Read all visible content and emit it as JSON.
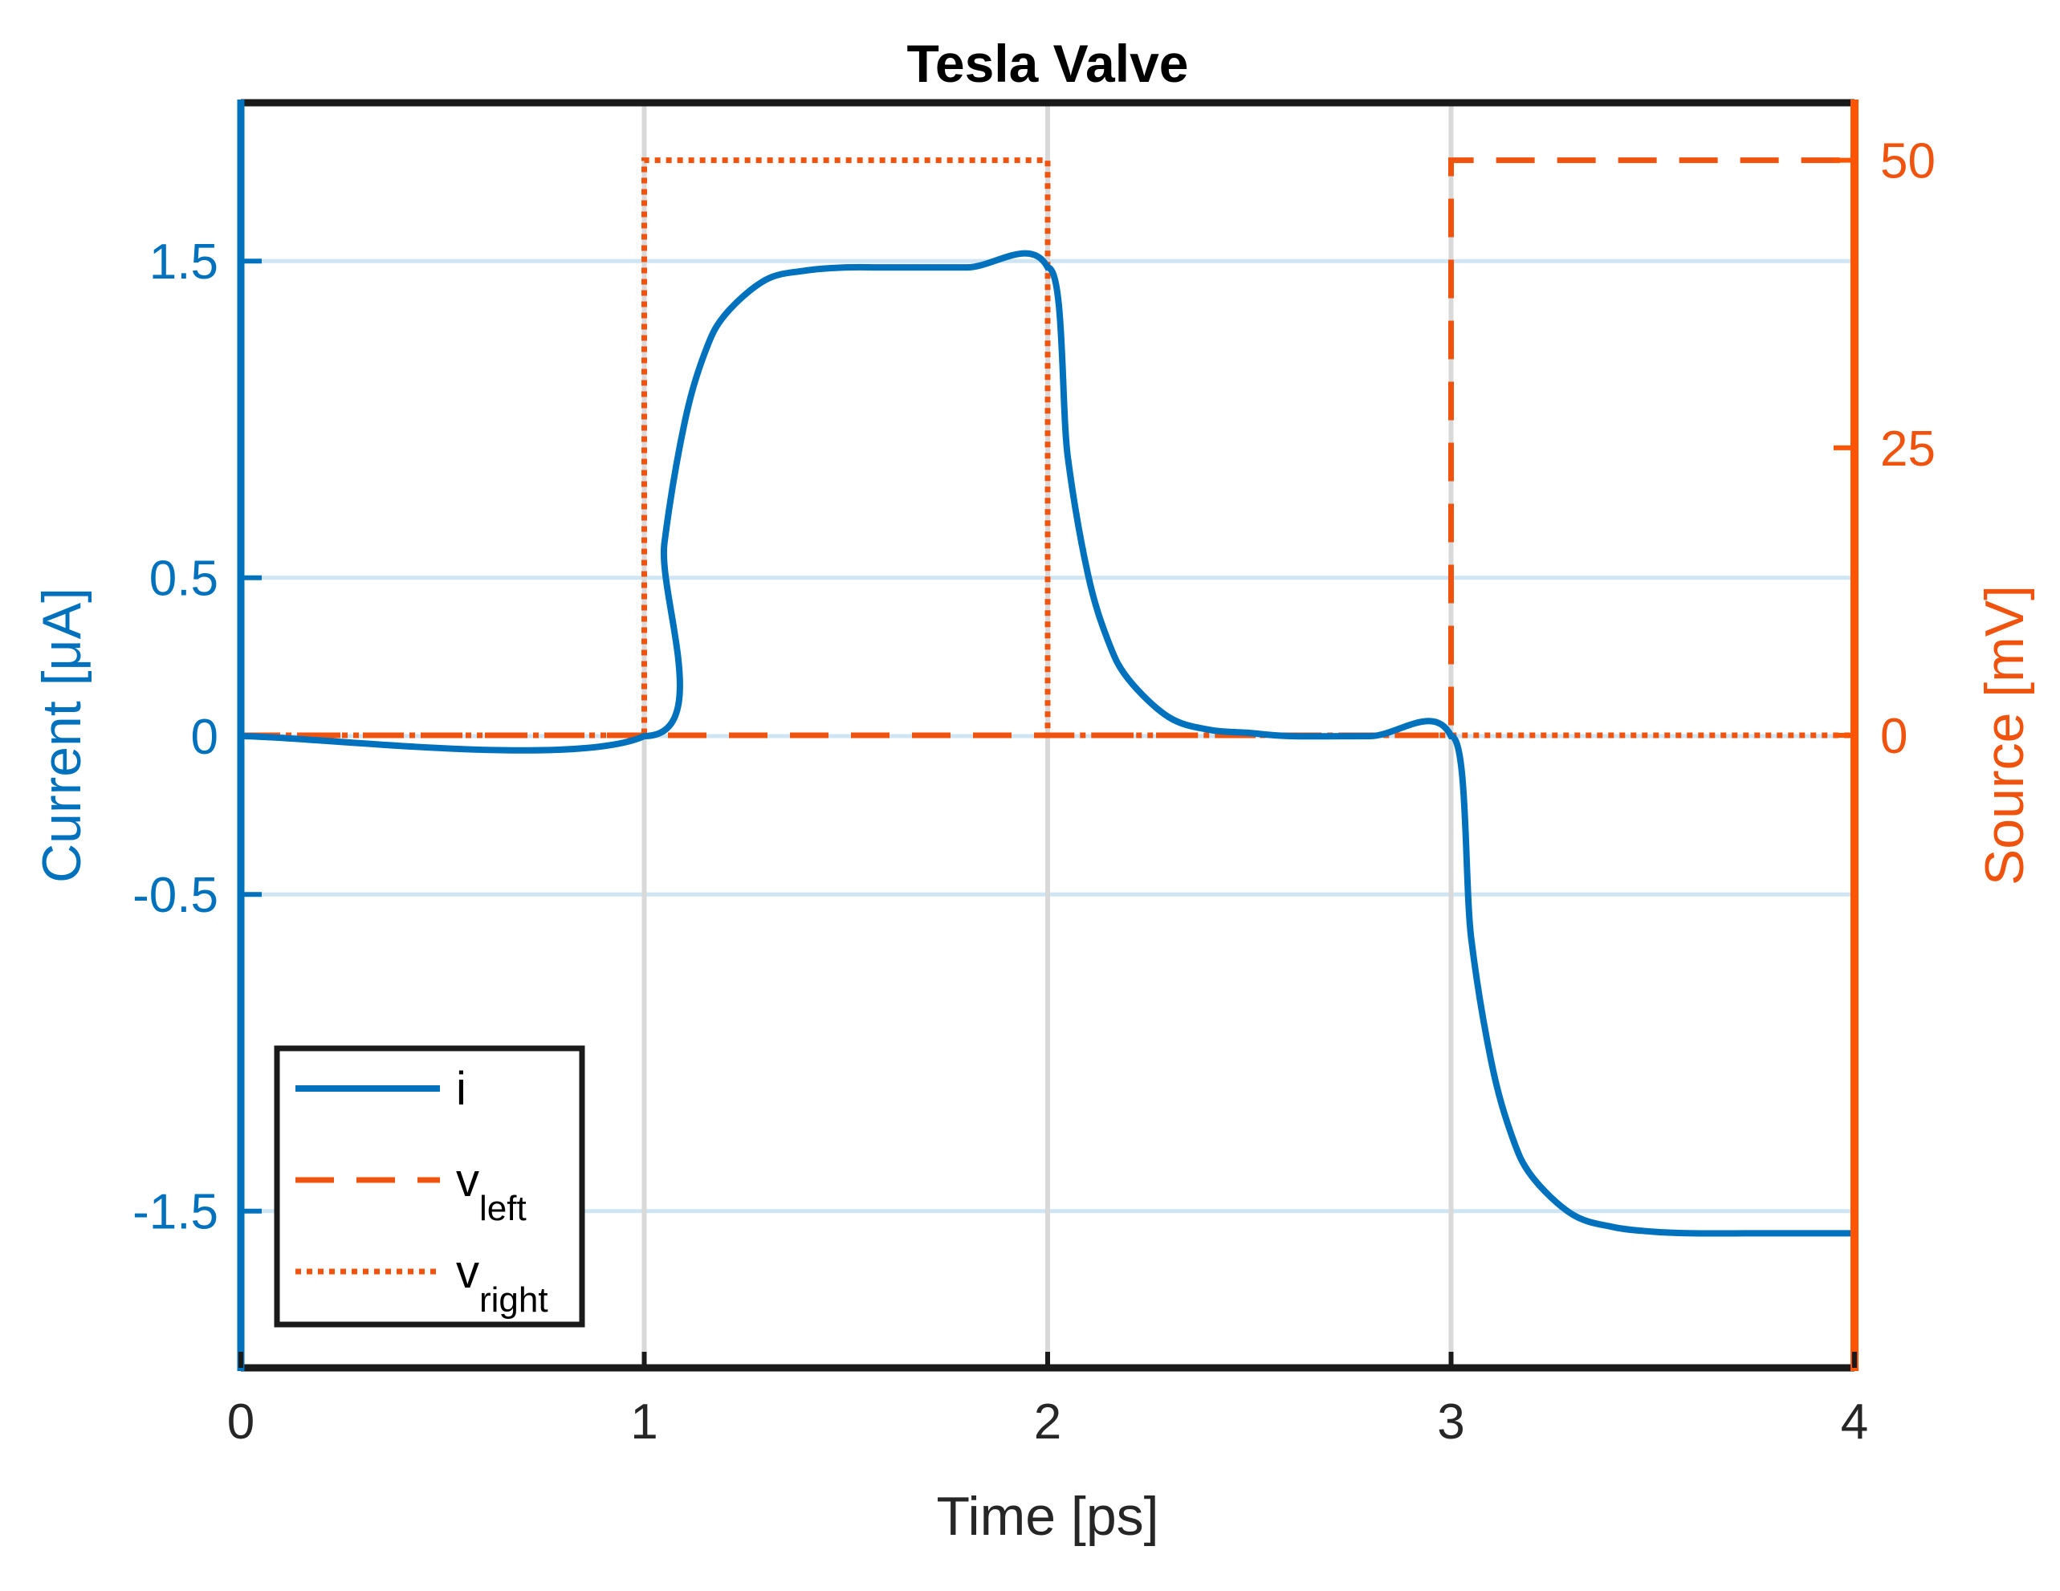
{
  "colors": {
    "current": "#0072BD",
    "source": "#F0530E",
    "source_axis": "#FF5500",
    "grid_h": "#CFE5F4",
    "grid_v": "#D9D9D9",
    "axis": "#262626",
    "box": "#1A1A1A"
  },
  "chart_data": {
    "type": "line",
    "title": "Tesla Valve",
    "xlabel": "Time [ps]",
    "ylabel_left": "Current [μA]",
    "ylabel_right": "Source [mV]",
    "xlim": [
      0,
      4
    ],
    "ylim_left": [
      -1.995,
      2.0
    ],
    "ylim_right": [
      -55,
      55
    ],
    "xticks": [
      0,
      1,
      2,
      3,
      4
    ],
    "xtick_labels": [
      "0",
      "1",
      "2",
      "3",
      "4"
    ],
    "yticks_left": [
      -1.5,
      -0.5,
      0,
      0.5,
      1.5
    ],
    "ytick_labels_left": [
      "-1.5",
      "-0.5",
      "0",
      "0.5",
      "1.5"
    ],
    "yticks_right": [
      0,
      25,
      50
    ],
    "ytick_labels_right": [
      "0",
      "25",
      "50"
    ],
    "grid": true,
    "legend_position": "bottom-left",
    "series": [
      {
        "name": "i",
        "label": "i",
        "axis": "left",
        "style": "solid",
        "x": [
          0,
          1.0,
          1.05,
          1.1,
          1.15,
          1.2,
          1.3,
          1.4,
          1.5,
          1.6,
          1.8,
          2.0,
          2.05,
          2.1,
          2.15,
          2.2,
          2.3,
          2.4,
          2.5,
          2.6,
          2.8,
          3.0,
          3.05,
          3.1,
          3.15,
          3.2,
          3.3,
          3.4,
          3.5,
          3.6,
          3.8,
          4.0
        ],
        "values": [
          0,
          0,
          0.61,
          0.99,
          1.21,
          1.33,
          1.44,
          1.47,
          1.48,
          1.48,
          1.48,
          1.48,
          0.88,
          0.51,
          0.3,
          0.18,
          0.06,
          0.02,
          0.01,
          0.0,
          0.0,
          0.0,
          -0.64,
          -1.03,
          -1.26,
          -1.39,
          -1.51,
          -1.55,
          -1.565,
          -1.57,
          -1.57,
          -1.57
        ]
      },
      {
        "name": "v_left",
        "label": "v",
        "subscript": "left",
        "axis": "right",
        "style": "dashed",
        "x": [
          0,
          3.0,
          3.0,
          4.0
        ],
        "values": [
          0,
          0,
          50,
          50
        ]
      },
      {
        "name": "v_right",
        "label": "v",
        "subscript": "right",
        "axis": "right",
        "style": "dotted",
        "x": [
          0,
          1.0,
          1.0,
          2.0,
          2.0,
          4.0
        ],
        "values": [
          0,
          0,
          50,
          50,
          0,
          0
        ]
      }
    ]
  }
}
